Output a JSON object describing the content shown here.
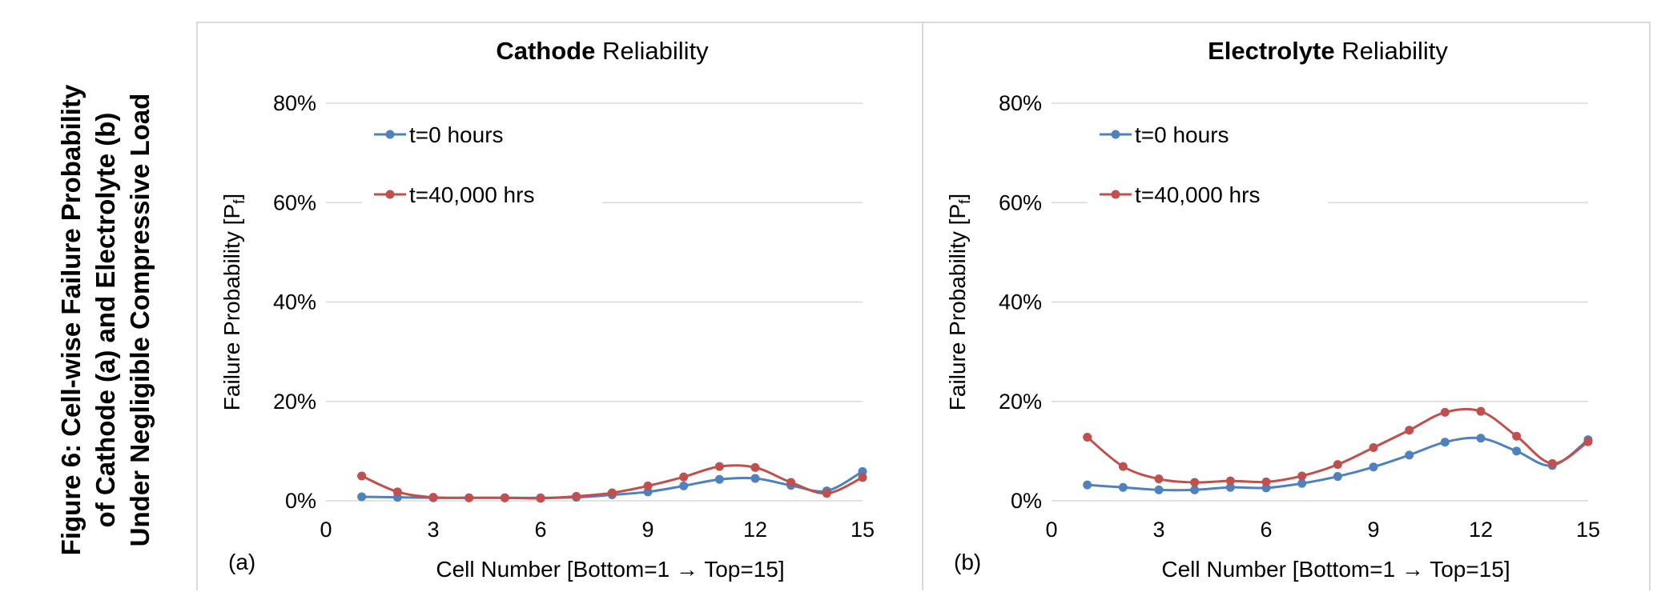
{
  "figure_caption": {
    "line1": "Figure 6: Cell-wise Failure Probability",
    "line2": "of Cathode (a) and Electrolyte (b)",
    "line3": "Under Negligible Compressive Load"
  },
  "colors": {
    "series_0h": "#4f81bd",
    "series_40k": "#c0504d",
    "grid": "#d9d9d9",
    "border": "#d9d9d9"
  },
  "chart_data": [
    {
      "type": "line",
      "panel_label": "(a)",
      "title_bold": "Cathode",
      "title_rest": " Reliability",
      "xlabel": "Cell Number [Bottom=1 → Top=15]",
      "ylabel_main": "Failure Probability [P",
      "ylabel_sub": "f",
      "ylabel_end": "]",
      "xlim": [
        0,
        15
      ],
      "ylim": [
        0,
        0.8
      ],
      "xticks": [
        0,
        3,
        6,
        9,
        12,
        15
      ],
      "yticks": [
        "0%",
        "20%",
        "40%",
        "60%",
        "80%"
      ],
      "grid": true,
      "legend_position": "top-left",
      "x": [
        1,
        2,
        3,
        4,
        5,
        6,
        7,
        8,
        9,
        10,
        11,
        12,
        13,
        14,
        15
      ],
      "series": [
        {
          "name": "t=0 hours",
          "color": "#4f81bd",
          "values": [
            0.008,
            0.007,
            0.006,
            0.006,
            0.006,
            0.006,
            0.007,
            0.012,
            0.018,
            0.03,
            0.043,
            0.045,
            0.031,
            0.02,
            0.059
          ]
        },
        {
          "name": "t=40,000 hrs",
          "color": "#c0504d",
          "values": [
            0.05,
            0.018,
            0.007,
            0.006,
            0.006,
            0.005,
            0.009,
            0.016,
            0.03,
            0.048,
            0.069,
            0.067,
            0.037,
            0.015,
            0.047
          ]
        }
      ]
    },
    {
      "type": "line",
      "panel_label": "(b)",
      "title_bold": "Electrolyte",
      "title_rest": " Reliability",
      "xlabel": "Cell Number [Bottom=1 → Top=15]",
      "ylabel_main": "Failure Probability [P",
      "ylabel_sub": "f",
      "ylabel_end": "]",
      "xlim": [
        0,
        15
      ],
      "ylim": [
        0,
        0.8
      ],
      "xticks": [
        0,
        3,
        6,
        9,
        12,
        15
      ],
      "yticks": [
        "0%",
        "20%",
        "40%",
        "60%",
        "80%"
      ],
      "grid": true,
      "legend_position": "top-left",
      "x": [
        1,
        2,
        3,
        4,
        5,
        6,
        7,
        8,
        9,
        10,
        11,
        12,
        13,
        14,
        15
      ],
      "series": [
        {
          "name": "t=0 hours",
          "color": "#4f81bd",
          "values": [
            0.032,
            0.027,
            0.022,
            0.022,
            0.027,
            0.026,
            0.035,
            0.049,
            0.068,
            0.092,
            0.118,
            0.126,
            0.1,
            0.071,
            0.123
          ]
        },
        {
          "name": "t=40,000 hrs",
          "color": "#c0504d",
          "values": [
            0.128,
            0.069,
            0.044,
            0.037,
            0.04,
            0.038,
            0.05,
            0.073,
            0.107,
            0.142,
            0.178,
            0.18,
            0.13,
            0.075,
            0.119
          ]
        }
      ]
    }
  ]
}
